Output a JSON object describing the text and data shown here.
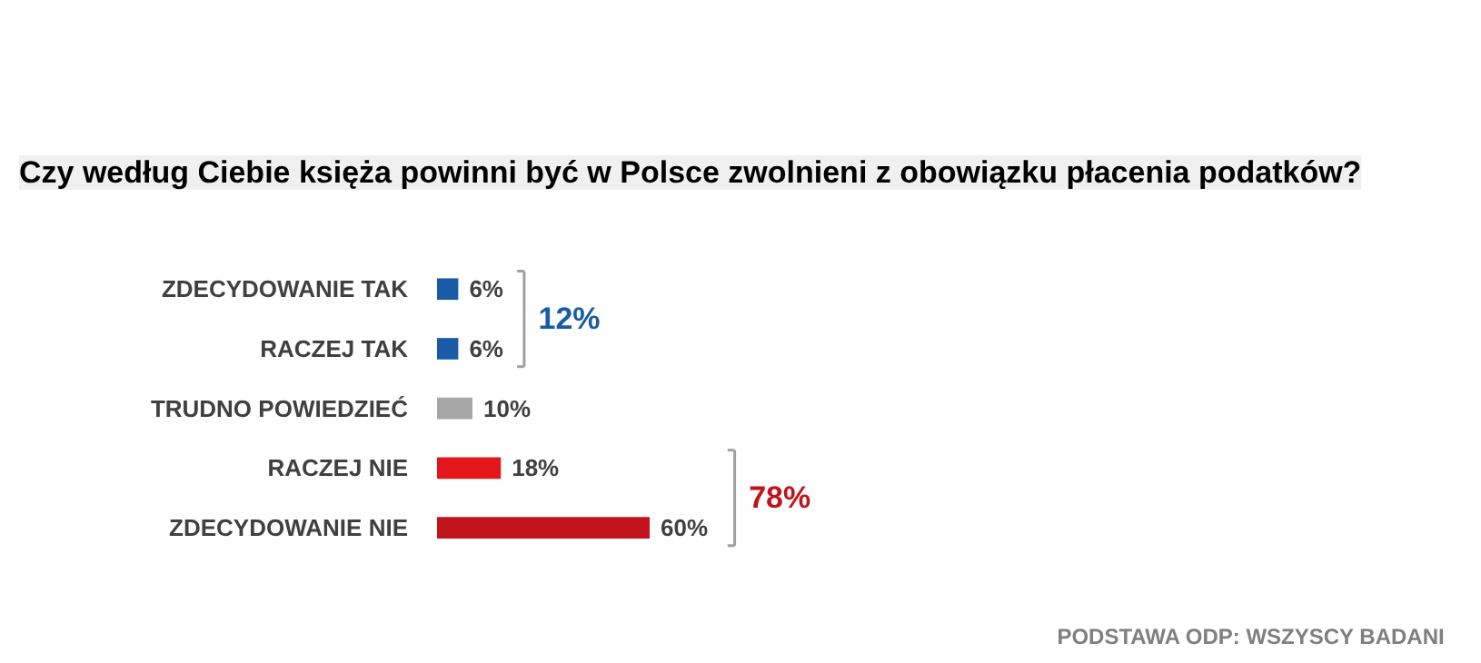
{
  "chart_data": {
    "type": "bar",
    "orientation": "horizontal",
    "title": "Czy według Ciebie księża powinni być w Polsce zwolnieni z obowiązku płacenia podatków?",
    "categories": [
      "ZDECYDOWANIE TAK",
      "RACZEJ TAK",
      "TRUDNO POWIEDZIEĆ",
      "RACZEJ NIE",
      "ZDECYDOWANIE NIE"
    ],
    "values": [
      6,
      6,
      10,
      18,
      60
    ],
    "colors": [
      "#1a5ba6",
      "#1a5ba6",
      "#a6a6a6",
      "#e3161b",
      "#c0141a"
    ],
    "value_labels": [
      "6%",
      "6%",
      "10%",
      "18%",
      "60%"
    ],
    "annotations": [
      "12%",
      "78%",
      "PODSTAWA ODP: WSZYSCY BADANI"
    ],
    "grid": false
  }
}
